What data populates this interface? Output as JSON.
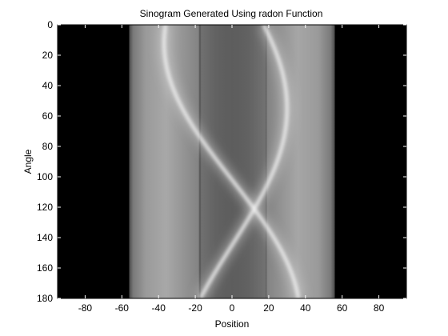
{
  "chart_data": {
    "type": "heatmap",
    "title": "Sinogram Generated Using radon Function",
    "xlabel": "Position",
    "ylabel": "Angle",
    "xlim": [
      -95,
      95
    ],
    "ylim": [
      0,
      180
    ],
    "y_reversed": true,
    "colormap": "gray",
    "grid": false,
    "x_ticks": [
      -80,
      -60,
      -40,
      -20,
      0,
      20,
      40,
      60,
      80
    ],
    "y_ticks": [
      0,
      20,
      40,
      60,
      80,
      100,
      120,
      140,
      160,
      180
    ],
    "support_range": [
      -56,
      56
    ],
    "bright_curves": [
      {
        "amplitude": 37,
        "phase_deg": 168,
        "period": 180
      },
      {
        "amplitude": 30,
        "phase_deg": 305,
        "period": 180
      }
    ],
    "dark_column_positions": [
      -18,
      18
    ]
  }
}
